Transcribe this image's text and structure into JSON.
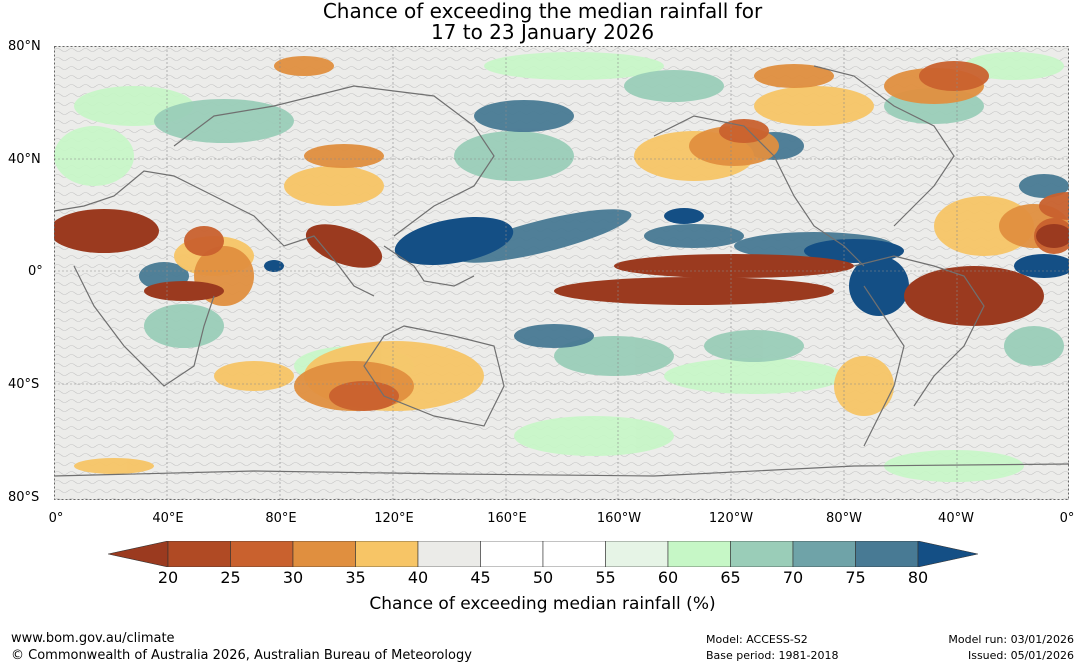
{
  "title_line1": "Chance of exceeding the median rainfall for",
  "title_line2": "17 to 23 January 2026",
  "lat_labels": [
    "80°N",
    "40°N",
    "0°",
    "40°S",
    "80°S"
  ],
  "lon_labels": [
    "0°",
    "40°E",
    "80°E",
    "120°E",
    "160°E",
    "160°W",
    "120°W",
    "80°W",
    "40°W",
    "0°"
  ],
  "colorbar": {
    "ticks": [
      "20",
      "25",
      "30",
      "35",
      "40",
      "45",
      "50",
      "55",
      "60",
      "65",
      "70",
      "75",
      "80"
    ],
    "colors": [
      "#9b3a1f",
      "#b04a24",
      "#c9612e",
      "#e08f3f",
      "#f7c566",
      "#ebebe8",
      "#ffffff",
      "#ffffff",
      "#e6f4e6",
      "#c6f7c6",
      "#9acdb8",
      "#6fa3a8",
      "#487a94",
      "#144f85"
    ],
    "label": "Chance of exceeding median rainfall (%)"
  },
  "footer": {
    "url": "www.bom.gov.au/climate",
    "copyright": "© Commonwealth of Australia 2026, Australian Bureau of Meteorology",
    "model": "Model: ACCESS-S2",
    "base_period": "Base period: 1981-2018",
    "model_run": "Model run: 03/01/2026",
    "issued": "Issued: 05/01/2026"
  }
}
